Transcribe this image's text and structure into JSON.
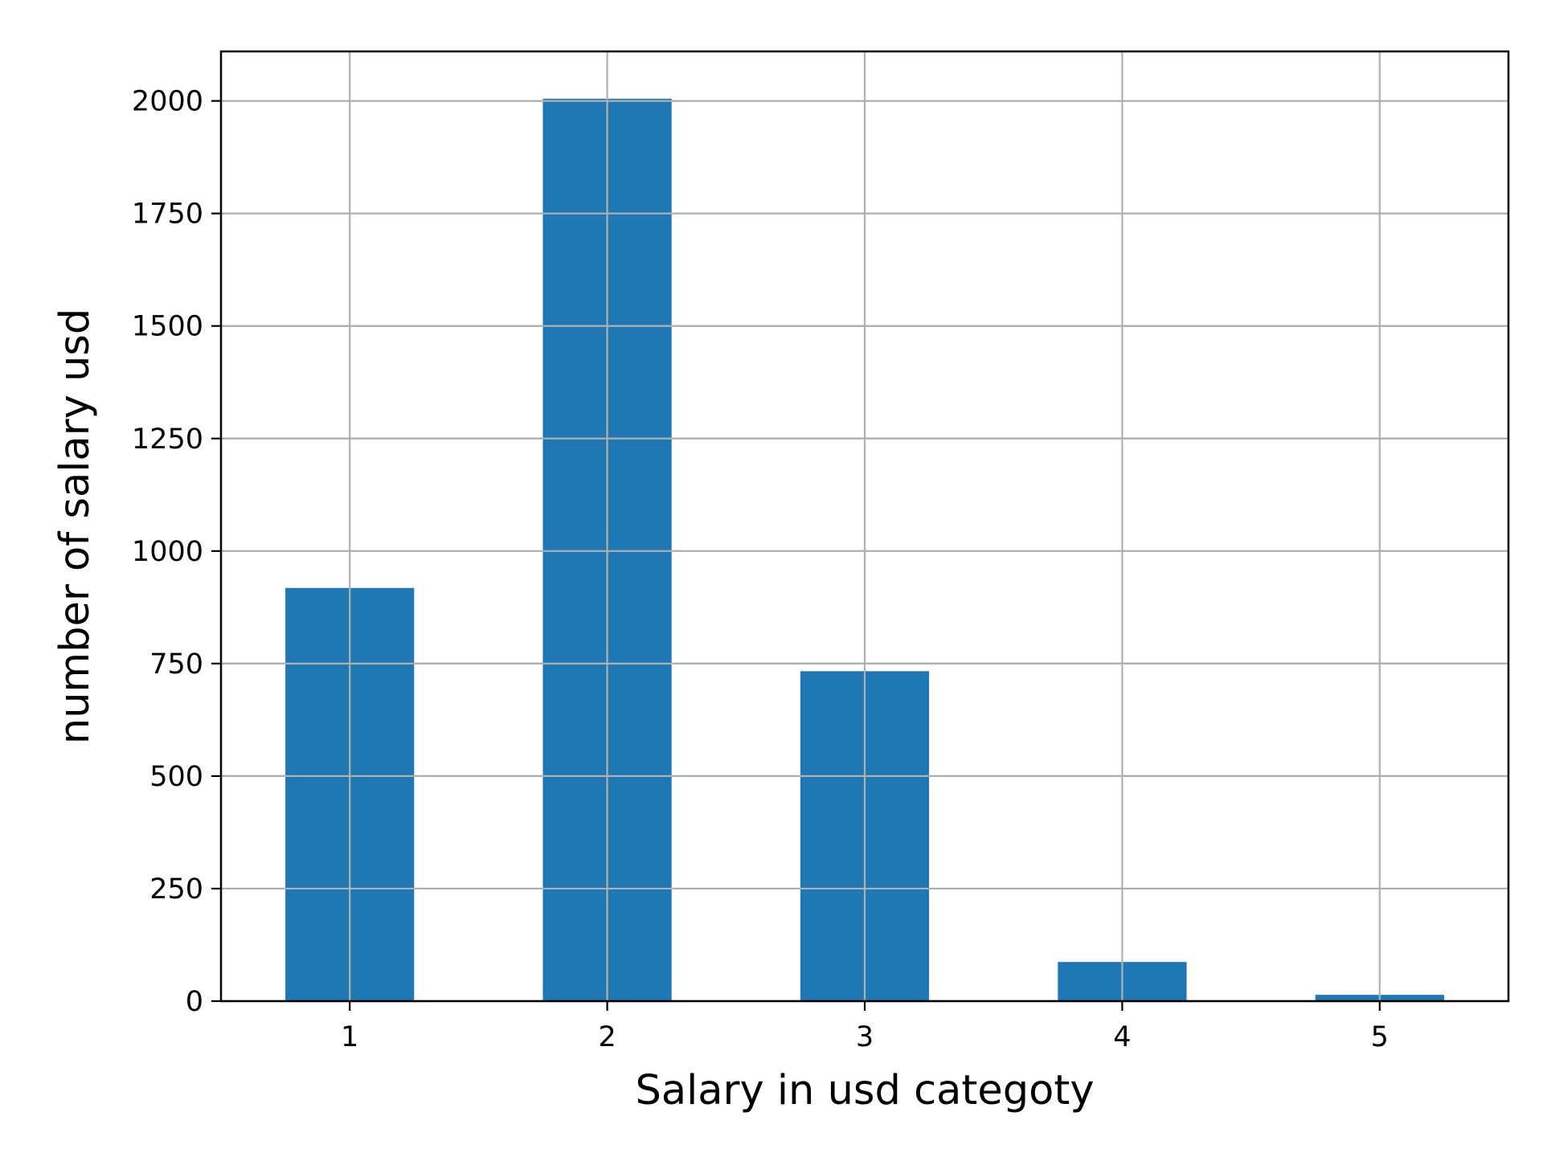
{
  "chart_data": {
    "type": "bar",
    "title": "",
    "xlabel": "Salary in usd categoty",
    "ylabel": "number of salary usd",
    "categories": [
      "1",
      "2",
      "3",
      "4",
      "5"
    ],
    "values": [
      918,
      2005,
      733,
      87,
      14
    ],
    "ylim": [
      0,
      2110
    ],
    "yticks": [
      0,
      250,
      500,
      750,
      1000,
      1250,
      1500,
      1750,
      2000
    ],
    "ytick_labels": [
      "0",
      "250",
      "500",
      "750",
      "1000",
      "1250",
      "1500",
      "1750",
      "2000"
    ],
    "grid": true,
    "legend": "none",
    "bar_color": "#1f77b4"
  }
}
